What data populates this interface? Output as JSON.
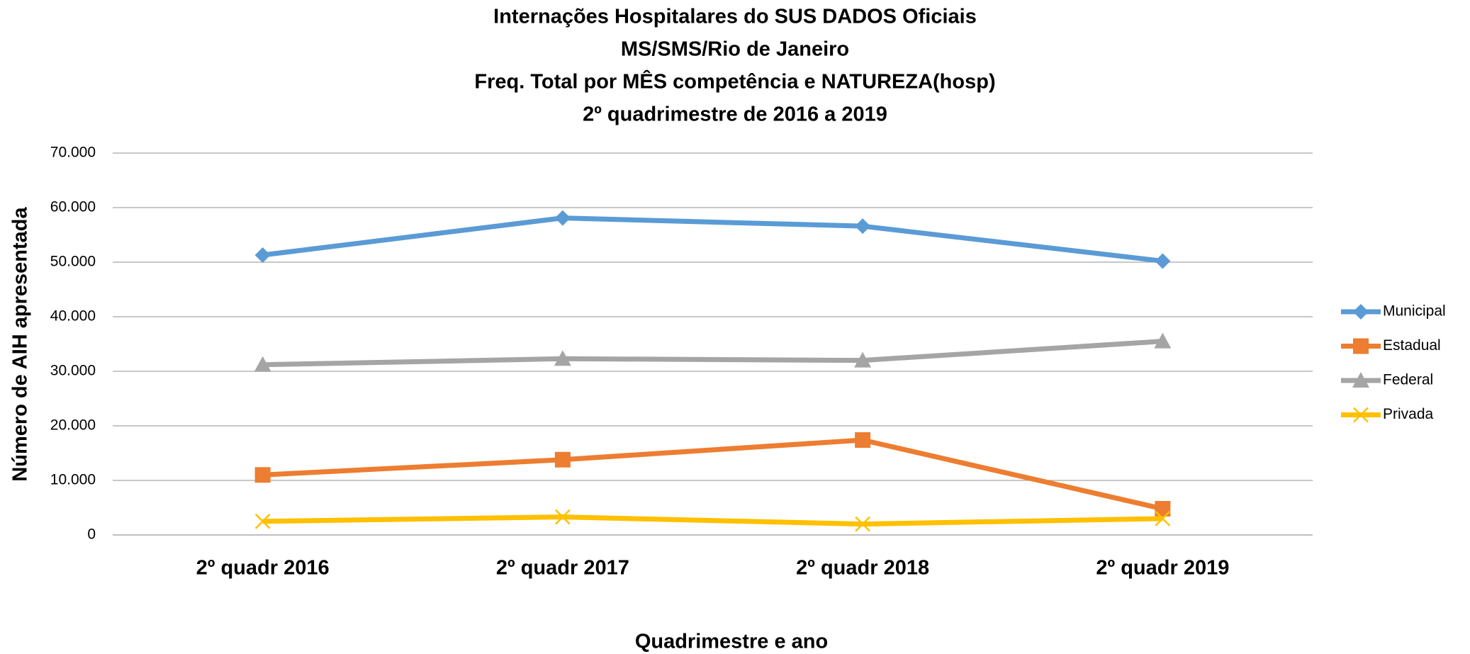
{
  "chart_data": {
    "type": "line",
    "title": [
      "Internações Hospitalares do SUS DADOS Oficiais",
      "MS/SMS/Rio de Janeiro",
      "Freq. Total por MÊS competência e NATUREZA(hosp)",
      "2º quadrimestre de 2016 a 2019"
    ],
    "x_label": "Quadrimestre e ano",
    "y_label": "Número de AIH apresentada",
    "categories": [
      "2º quadr 2016",
      "2º quadr 2017",
      "2º quadr 2018",
      "2º quadr 2019"
    ],
    "series": [
      {
        "name": "Municipal",
        "color": "#5b9bd5",
        "marker": "diamond",
        "values": [
          51300,
          58100,
          56600,
          50200
        ]
      },
      {
        "name": "Estadual",
        "color": "#ed7d31",
        "marker": "square",
        "values": [
          11000,
          13800,
          17400,
          4800
        ]
      },
      {
        "name": "Federal",
        "color": "#a5a5a5",
        "marker": "triangle",
        "values": [
          31200,
          32300,
          32000,
          35500
        ]
      },
      {
        "name": "Privada",
        "color": "#ffc000",
        "marker": "x",
        "values": [
          2500,
          3300,
          2000,
          3000
        ]
      }
    ],
    "ylim": [
      0,
      70000
    ],
    "yticks": [
      0,
      {
        "value": 10000,
        "label": "10.000"
      },
      {
        "value": 20000,
        "label": "20.000"
      },
      {
        "value": 30000,
        "label": "30.000"
      },
      {
        "value": 40000,
        "label": "40.000"
      },
      {
        "value": 50000,
        "label": "50.000"
      },
      {
        "value": 60000,
        "label": "60.000"
      },
      {
        "value": 70000,
        "label": "70.000"
      }
    ],
    "grid": true,
    "legend": "right"
  }
}
